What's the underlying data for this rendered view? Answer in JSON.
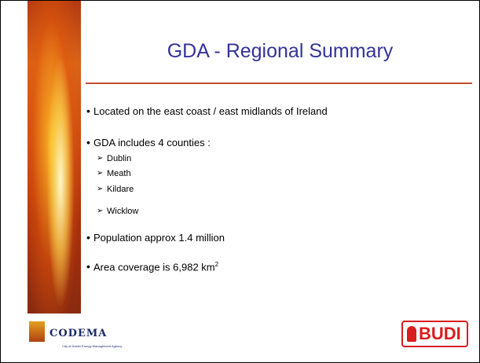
{
  "title": "GDA - Regional Summary",
  "bullets": [
    "Located on the east coast / east midlands of Ireland",
    "GDA includes 4 counties :",
    "Population approx 1.4 million"
  ],
  "counties": [
    "Dublin",
    "Meath",
    "Kildare",
    "Wicklow"
  ],
  "area": {
    "text": "Area coverage is 6,982 km",
    "superscript": "2"
  },
  "footer": {
    "codema": "CODEMA",
    "codema_tagline": "City of Dublin Energy Management Agency",
    "budi": "BUDI"
  }
}
